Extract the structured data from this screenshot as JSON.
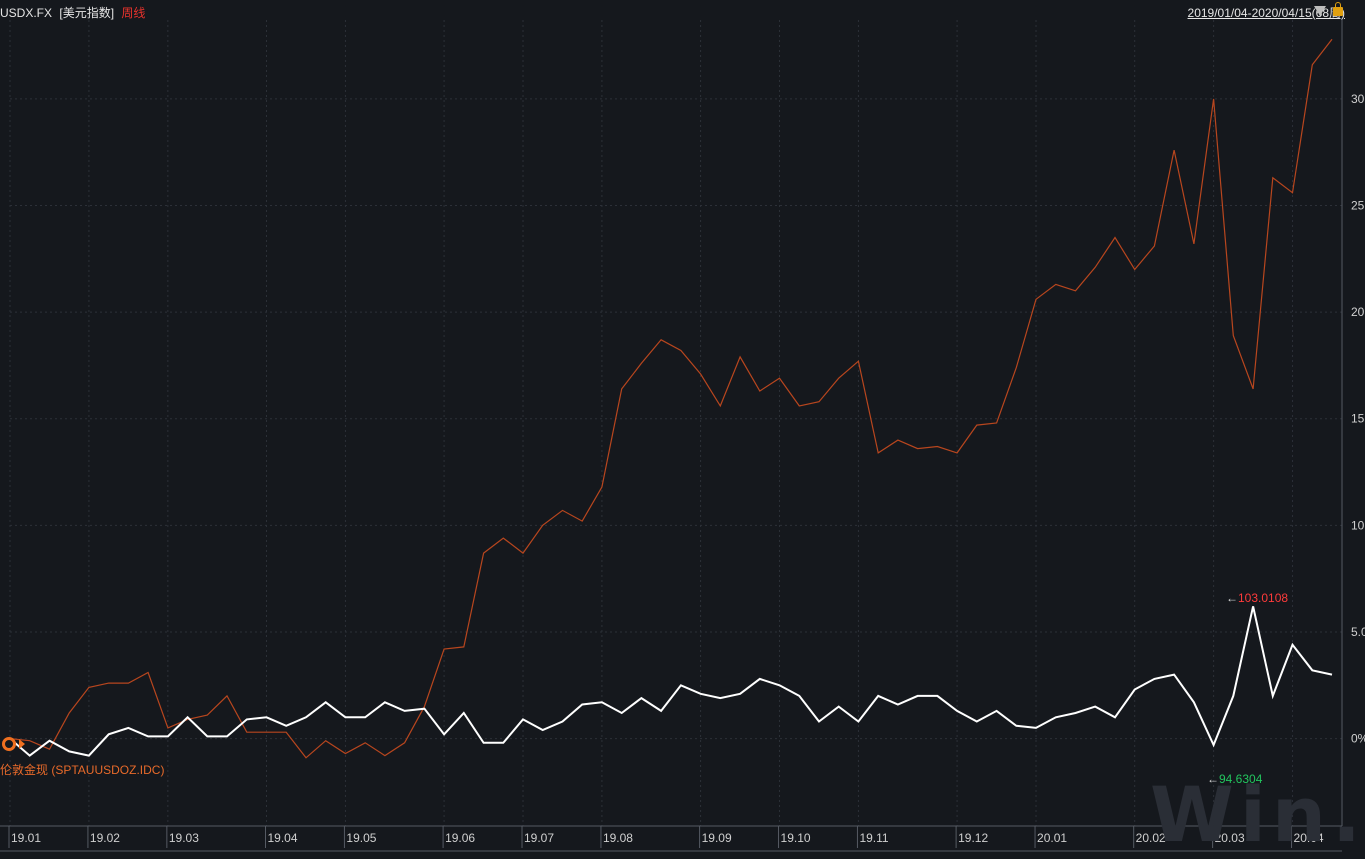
{
  "header": {
    "symbol": "USDX.FX",
    "name": "[美元指数]",
    "period": "周线",
    "range": "2019/01/04-2020/04/15(68周)"
  },
  "series_label": "伦敦金现 (SPTAUUSDOZ.IDC)",
  "annotations": {
    "high": "103.0108",
    "low": "94.6304",
    "arrow": "←"
  },
  "watermark": "Win.d",
  "colors": {
    "background": "#15181d",
    "usdx": "#ffffff",
    "gold": "#b8461e",
    "high": "#ff3b3b",
    "low": "#22c55e",
    "period": "#e8332c"
  },
  "icons": [
    "dropdown-triangle-icon",
    "lock-icon",
    "series-marker-icon"
  ],
  "chart_data": {
    "type": "line",
    "y_unit": "%",
    "y_ticks": [
      {
        "v": 0,
        "label": "0%"
      },
      {
        "v": 5,
        "label": "5.0"
      },
      {
        "v": 10,
        "label": "10"
      },
      {
        "v": 15,
        "label": "15"
      },
      {
        "v": 20,
        "label": "20"
      },
      {
        "v": 25,
        "label": "25"
      },
      {
        "v": 30,
        "label": "30"
      }
    ],
    "ylim": [
      -4.1,
      33.7
    ],
    "x_ticks": [
      {
        "i": 0,
        "label": "19.01"
      },
      {
        "i": 4,
        "label": "19.02"
      },
      {
        "i": 8,
        "label": "19.03"
      },
      {
        "i": 13,
        "label": "19.04"
      },
      {
        "i": 17,
        "label": "19.05"
      },
      {
        "i": 22,
        "label": "19.06"
      },
      {
        "i": 26,
        "label": "19.07"
      },
      {
        "i": 30,
        "label": "19.08"
      },
      {
        "i": 35,
        "label": "19.09"
      },
      {
        "i": 39,
        "label": "19.10"
      },
      {
        "i": 43,
        "label": "19.11"
      },
      {
        "i": 48,
        "label": "19.12"
      },
      {
        "i": 52,
        "label": "20.01"
      },
      {
        "i": 57,
        "label": "20.02"
      },
      {
        "i": 61,
        "label": "20.03"
      },
      {
        "i": 65,
        "label": "20.04"
      }
    ],
    "grid": true,
    "series": [
      {
        "name": "USDX.FX",
        "values": [
          0.0,
          -0.8,
          -0.1,
          -0.6,
          -0.8,
          0.2,
          0.5,
          0.1,
          0.1,
          1.0,
          0.1,
          0.1,
          0.9,
          1.0,
          0.6,
          1.0,
          1.7,
          1.0,
          1.0,
          1.7,
          1.3,
          1.4,
          0.2,
          1.2,
          -0.2,
          -0.2,
          0.9,
          0.4,
          0.8,
          1.6,
          1.7,
          1.2,
          1.9,
          1.3,
          2.5,
          2.1,
          1.9,
          2.1,
          2.8,
          2.5,
          2.0,
          0.8,
          1.5,
          0.8,
          2.0,
          1.6,
          2.0,
          2.0,
          1.3,
          0.8,
          1.3,
          0.6,
          0.5,
          1.0,
          1.2,
          1.5,
          1.0,
          2.3,
          2.8,
          3.0,
          1.7,
          -0.3,
          2.0,
          6.2,
          2.0,
          4.4,
          3.2,
          3.0
        ]
      },
      {
        "name": "伦敦金现 (SPTAUUSDOZ.IDC)",
        "values": [
          0.0,
          -0.1,
          -0.5,
          1.2,
          2.4,
          2.6,
          2.6,
          3.1,
          0.5,
          0.9,
          1.1,
          2.0,
          0.3,
          0.3,
          0.3,
          -0.9,
          -0.1,
          -0.7,
          -0.2,
          -0.8,
          -0.2,
          1.5,
          4.2,
          4.3,
          8.7,
          9.4,
          8.7,
          10.0,
          10.7,
          10.2,
          11.8,
          16.4,
          17.6,
          18.7,
          18.2,
          17.1,
          15.6,
          17.9,
          16.3,
          16.9,
          15.6,
          15.8,
          16.9,
          17.7,
          13.4,
          14.0,
          13.6,
          13.7,
          13.4,
          14.7,
          14.8,
          17.4,
          20.6,
          21.3,
          21.0,
          22.1,
          23.5,
          22.0,
          23.1,
          27.6,
          23.2,
          30.0,
          18.9,
          16.4,
          26.3,
          25.6,
          31.6,
          32.8
        ]
      }
    ]
  }
}
